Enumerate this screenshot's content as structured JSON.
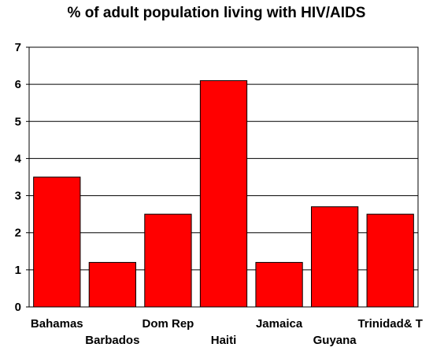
{
  "chart_data": {
    "type": "bar",
    "title": "% of adult population living with HIV/AIDS",
    "xlabel": "",
    "ylabel": "",
    "categories": [
      "Bahamas",
      "Barbados",
      "Dom Rep",
      "Haiti",
      "Jamaica",
      "Guyana",
      "Trinidad& T"
    ],
    "values": [
      3.5,
      1.2,
      2.5,
      6.1,
      1.2,
      2.7,
      2.5
    ],
    "ylim": [
      0,
      7
    ],
    "yticks": [
      "0",
      "1",
      "2",
      "3",
      "4",
      "5",
      "6",
      "7"
    ],
    "grid": true,
    "legend": "none",
    "bar_color": "#ff0000",
    "bar_edge_color": "#000000",
    "grid_color": "#000000"
  }
}
